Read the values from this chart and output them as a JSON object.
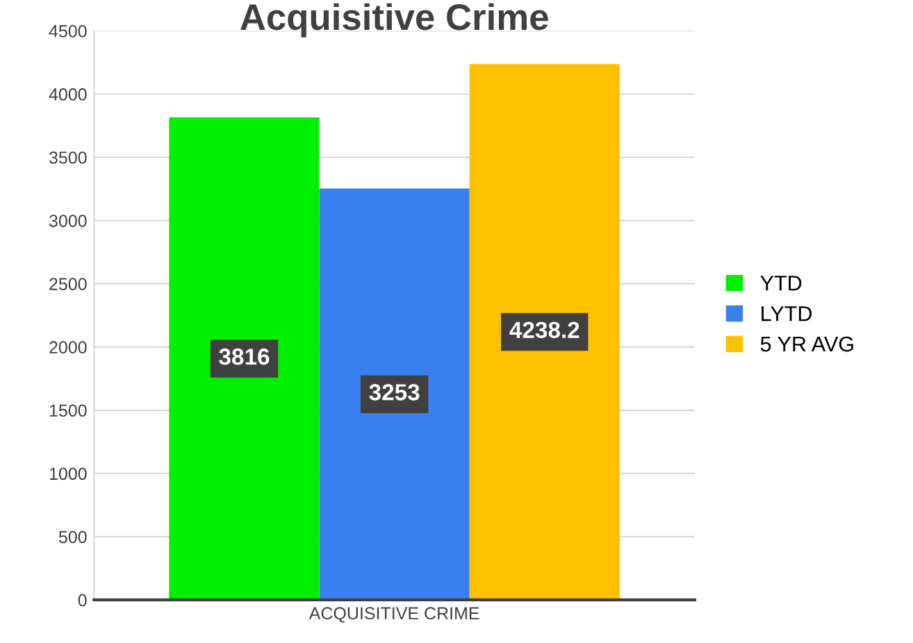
{
  "chart_data": {
    "type": "bar",
    "title": "Acquisitive Crime",
    "categories": [
      "ACQUISITIVE CRIME"
    ],
    "series": [
      {
        "name": "YTD",
        "color": "#00f000",
        "values": [
          3816
        ]
      },
      {
        "name": "LYTD",
        "color": "#3a7ff0",
        "values": [
          3253
        ]
      },
      {
        "name": "5 YR AVG",
        "color": "#ffc000",
        "values": [
          4238.2
        ]
      }
    ],
    "ylim": [
      0,
      4500
    ],
    "yticks": [
      0,
      500,
      1000,
      1500,
      2000,
      2500,
      3000,
      3500,
      4000,
      4500
    ],
    "grid": "y",
    "legend": "right",
    "data_labels": true
  }
}
